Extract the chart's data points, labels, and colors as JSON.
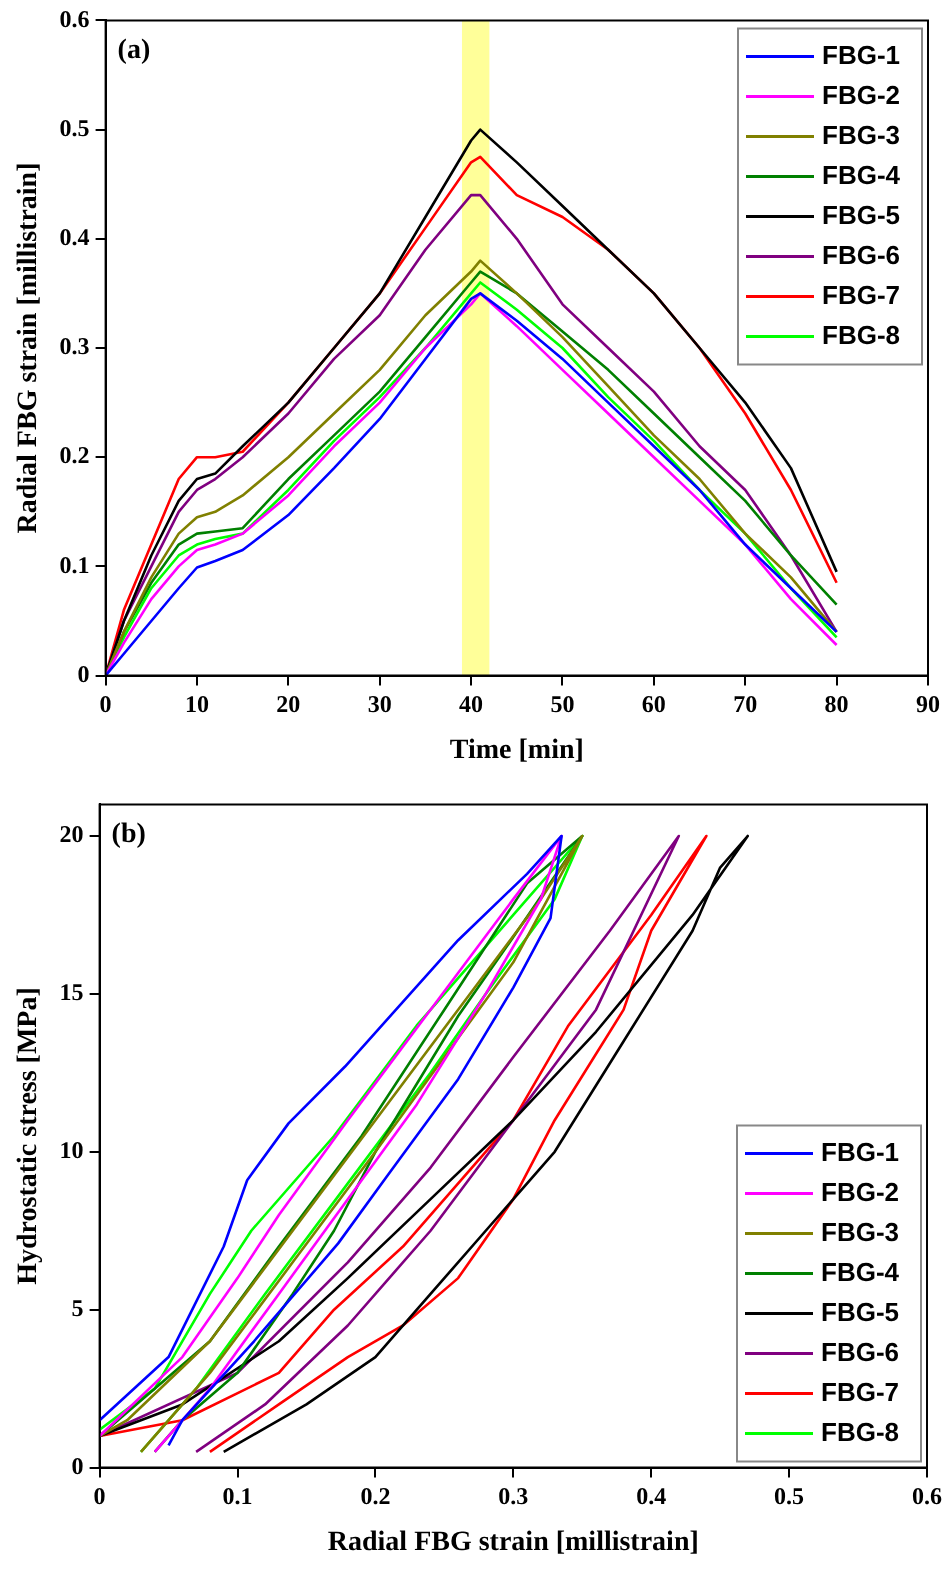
{
  "chart_data": [
    {
      "type": "line",
      "xlabel": "Time [min]",
      "ylabel": "Radial FBG strain [millistrain]",
      "annotations": [
        "(a)"
      ],
      "xlim": [
        0,
        90
      ],
      "xticks": [
        0,
        10,
        20,
        30,
        40,
        50,
        60,
        70,
        80,
        90
      ],
      "ylim": [
        0,
        0.6
      ],
      "yticks": [
        0,
        0.1,
        0.2,
        0.3,
        0.4,
        0.5,
        0.6
      ],
      "legend": "top right",
      "bands": [
        {
          "axis": "x",
          "from": 39,
          "to": 42,
          "color": "#ffff99"
        }
      ],
      "x": [
        0,
        2,
        5,
        8,
        10,
        12,
        15,
        20,
        25,
        30,
        35,
        40,
        41,
        45,
        50,
        55,
        60,
        65,
        70,
        75,
        80
      ],
      "series": [
        {
          "name": "FBG-1",
          "color": "#0000ff",
          "values": [
            0,
            0.02,
            0.05,
            0.08,
            0.099,
            0.105,
            0.115,
            0.147,
            0.19,
            0.235,
            0.29,
            0.345,
            0.35,
            0.325,
            0.29,
            0.25,
            0.21,
            0.17,
            0.12,
            0.08,
            0.04
          ]
        },
        {
          "name": "FBG-2",
          "color": "#ff00ff",
          "values": [
            0,
            0.03,
            0.07,
            0.1,
            0.115,
            0.12,
            0.13,
            0.165,
            0.21,
            0.25,
            0.3,
            0.34,
            0.35,
            0.32,
            0.28,
            0.24,
            0.2,
            0.16,
            0.12,
            0.07,
            0.028
          ]
        },
        {
          "name": "FBG-3",
          "color": "#808000",
          "values": [
            0,
            0.04,
            0.09,
            0.13,
            0.145,
            0.15,
            0.165,
            0.2,
            0.24,
            0.28,
            0.33,
            0.37,
            0.38,
            0.35,
            0.31,
            0.265,
            0.22,
            0.18,
            0.13,
            0.09,
            0.04
          ]
        },
        {
          "name": "FBG-4",
          "color": "#008000",
          "values": [
            0,
            0.04,
            0.085,
            0.12,
            0.13,
            0.132,
            0.135,
            0.18,
            0.22,
            0.26,
            0.31,
            0.36,
            0.37,
            0.35,
            0.315,
            0.28,
            0.24,
            0.2,
            0.16,
            0.11,
            0.065
          ]
        },
        {
          "name": "FBG-5",
          "color": "#000000",
          "values": [
            0,
            0.05,
            0.11,
            0.16,
            0.18,
            0.185,
            0.21,
            0.25,
            0.3,
            0.35,
            0.42,
            0.49,
            0.5,
            0.47,
            0.43,
            0.39,
            0.35,
            0.3,
            0.25,
            0.19,
            0.095
          ]
        },
        {
          "name": "FBG-6",
          "color": "#800080",
          "values": [
            0,
            0.05,
            0.1,
            0.15,
            0.17,
            0.18,
            0.2,
            0.24,
            0.29,
            0.33,
            0.39,
            0.44,
            0.44,
            0.4,
            0.34,
            0.3,
            0.26,
            0.21,
            0.17,
            0.11,
            0.04
          ]
        },
        {
          "name": "FBG-7",
          "color": "#ff0000",
          "values": [
            0,
            0.06,
            0.12,
            0.18,
            0.2,
            0.2,
            0.205,
            0.25,
            0.3,
            0.35,
            0.41,
            0.47,
            0.475,
            0.44,
            0.42,
            0.39,
            0.35,
            0.3,
            0.24,
            0.17,
            0.085
          ]
        },
        {
          "name": "FBG-8",
          "color": "#00ff00",
          "values": [
            0,
            0.035,
            0.08,
            0.11,
            0.12,
            0.125,
            0.13,
            0.17,
            0.215,
            0.255,
            0.3,
            0.35,
            0.36,
            0.335,
            0.3,
            0.255,
            0.215,
            0.17,
            0.13,
            0.08,
            0.035
          ]
        }
      ]
    },
    {
      "type": "line",
      "xlabel": "Radial FBG strain [millistrain]",
      "ylabel": "Hydrostatic stress [MPa]",
      "annotations": [
        "(b)"
      ],
      "xlim": [
        0,
        0.6
      ],
      "xticks": [
        0,
        0.1,
        0.2,
        0.3,
        0.4,
        0.5,
        0.6
      ],
      "ylim": [
        0,
        21
      ],
      "yticks": [
        0,
        5,
        10,
        15,
        20
      ],
      "legend": "bottom right",
      "series": [
        {
          "name": "FBG-1",
          "color": "#0000ff",
          "x": [
            0.05,
            0.06,
            0.112,
            0.173,
            0.208,
            0.26,
            0.3,
            0.327,
            0.335,
            0.31,
            0.26,
            0.178,
            0.137,
            0.107,
            0.09,
            0.05,
            0
          ],
          "values": [
            0.7,
            1.5,
            4,
            7.1,
            9.2,
            12.3,
            15.2,
            17.4,
            20,
            18.8,
            16.7,
            12.7,
            10.9,
            9.1,
            7,
            3.5,
            1.5
          ]
        },
        {
          "name": "FBG-2",
          "color": "#ff00ff",
          "x": [
            0.04,
            0.08,
            0.13,
            0.18,
            0.23,
            0.28,
            0.32,
            0.335,
            0.3,
            0.24,
            0.18,
            0.13,
            0.1,
            0.06,
            0
          ],
          "values": [
            0.5,
            2.5,
            5.5,
            8.5,
            11.5,
            15,
            18,
            20,
            18,
            14.5,
            11,
            8,
            6,
            3.5,
            1
          ]
        },
        {
          "name": "FBG-3",
          "color": "#808000",
          "x": [
            0.03,
            0.08,
            0.14,
            0.2,
            0.25,
            0.3,
            0.35,
            0.32,
            0.26,
            0.2,
            0.14,
            0.08,
            0.02,
            0
          ],
          "values": [
            0.5,
            3,
            6.5,
            10,
            13,
            16,
            20,
            18,
            14.5,
            11,
            7.5,
            4,
            1.5,
            1
          ]
        },
        {
          "name": "FBG-4",
          "color": "#008000",
          "x": [
            0.04,
            0.06,
            0.1,
            0.14,
            0.17,
            0.2,
            0.26,
            0.3,
            0.35,
            0.31,
            0.25,
            0.19,
            0.13,
            0.08,
            0
          ],
          "values": [
            0.5,
            1.5,
            3,
            5.5,
            7.5,
            10,
            14.3,
            16.8,
            20,
            18.5,
            14.5,
            10.5,
            7,
            4,
            1
          ]
        },
        {
          "name": "FBG-5",
          "color": "#000000",
          "x": [
            0.09,
            0.15,
            0.2,
            0.24,
            0.28,
            0.33,
            0.38,
            0.43,
            0.45,
            0.47,
            0.43,
            0.36,
            0.3,
            0.24,
            0.18,
            0.13,
            0.06,
            0
          ],
          "values": [
            0.5,
            2,
            3.5,
            5.5,
            7.5,
            10,
            13.5,
            17,
            19,
            20,
            17.5,
            13.8,
            11,
            8.5,
            6,
            4,
            2,
            1
          ]
        },
        {
          "name": "FBG-6",
          "color": "#800080",
          "x": [
            0.07,
            0.12,
            0.18,
            0.24,
            0.3,
            0.36,
            0.42,
            0.37,
            0.3,
            0.24,
            0.18,
            0.1,
            0
          ],
          "values": [
            0.5,
            2,
            4.5,
            7.5,
            11,
            14.5,
            20,
            17,
            13,
            9.5,
            6.5,
            3,
            1
          ]
        },
        {
          "name": "FBG-7",
          "color": "#ff0000",
          "x": [
            0.08,
            0.13,
            0.18,
            0.22,
            0.26,
            0.3,
            0.33,
            0.38,
            0.4,
            0.44,
            0.4,
            0.34,
            0.3,
            0.22,
            0.17,
            0.13,
            0.06,
            0
          ],
          "values": [
            0.5,
            2,
            3.5,
            4.5,
            6,
            8.5,
            11,
            14.5,
            17,
            20,
            17.5,
            14,
            11,
            7,
            5,
            3,
            1.5,
            1
          ]
        },
        {
          "name": "FBG-8",
          "color": "#00ff00",
          "x": [
            0.03,
            0.07,
            0.12,
            0.18,
            0.24,
            0.28,
            0.33,
            0.35,
            0.3,
            0.23,
            0.17,
            0.11,
            0.08,
            0.04,
            0
          ],
          "values": [
            0.5,
            2.5,
            5.5,
            9,
            12.5,
            15,
            18,
            20,
            17.5,
            14,
            10.5,
            7.5,
            5.5,
            2.5,
            1.2
          ]
        }
      ]
    }
  ]
}
